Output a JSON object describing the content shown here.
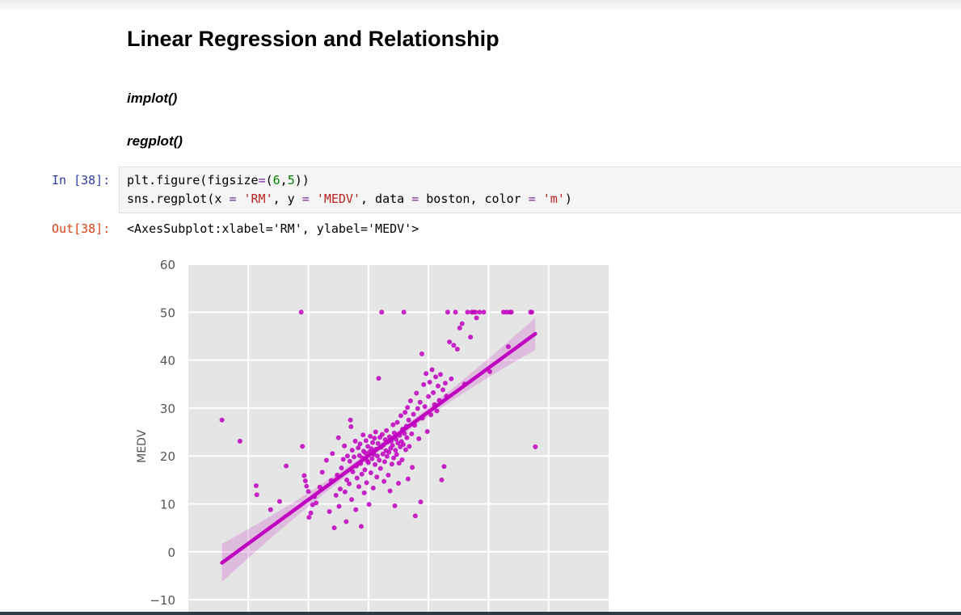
{
  "notebook": {
    "heading": "Linear Regression and Relationship",
    "sub1": "implot()",
    "sub2": "regplot()",
    "in_prompt": "In [38]:",
    "out_prompt": "Out[38]:",
    "code_line1": [
      "plt.figure(figsize",
      "=",
      "(",
      "6",
      ",",
      "5",
      "))"
    ],
    "code_line2": [
      "sns.regplot(x ",
      "=",
      " ",
      "'RM'",
      ", y ",
      "=",
      " ",
      "'MEDV'",
      ", data ",
      "=",
      " boston, color ",
      "=",
      " ",
      "'m'",
      ")"
    ],
    "output_text": "<AxesSubplot:xlabel='RM', ylabel='MEDV'>"
  },
  "chart_data": {
    "type": "scatter",
    "xlabel": "",
    "ylabel": "MEDV",
    "xlim": [
      3,
      10
    ],
    "ylim": [
      -10,
      60
    ],
    "yticks": [
      "60",
      "50",
      "40",
      "30",
      "20",
      "10",
      "0",
      "−10"
    ],
    "grid": true,
    "color": "#bf00bf",
    "regression": {
      "x": [
        3.56,
        8.78
      ],
      "y": [
        -2.3,
        45.5
      ]
    },
    "series": [
      {
        "values": [
          [
            3.56,
            27.5
          ],
          [
            3.86,
            23.1
          ],
          [
            4.13,
            13.8
          ],
          [
            4.14,
            11.9
          ],
          [
            4.37,
            8.8
          ],
          [
            4.52,
            10.5
          ],
          [
            4.63,
            17.9
          ],
          [
            4.88,
            50
          ],
          [
            4.9,
            22
          ],
          [
            4.93,
            15.9
          ],
          [
            4.95,
            14.8
          ],
          [
            4.97,
            13.7
          ],
          [
            5.0,
            12.6
          ],
          [
            5.01,
            7.2
          ],
          [
            5.04,
            8.1
          ],
          [
            5.07,
            9.8
          ],
          [
            5.1,
            11.5
          ],
          [
            5.13,
            10.2
          ],
          [
            5.19,
            13.5
          ],
          [
            5.23,
            16.6
          ],
          [
            5.3,
            19.1
          ],
          [
            5.35,
            8.4
          ],
          [
            5.38,
            14.9
          ],
          [
            5.4,
            20.5
          ],
          [
            5.43,
            5.0
          ],
          [
            5.46,
            11.8
          ],
          [
            5.48,
            16.0
          ],
          [
            5.5,
            23.8
          ],
          [
            5.51,
            9.5
          ],
          [
            5.53,
            13.1
          ],
          [
            5.55,
            17.5
          ],
          [
            5.58,
            19.3
          ],
          [
            5.6,
            22.1
          ],
          [
            5.61,
            12.5
          ],
          [
            5.63,
            6.3
          ],
          [
            5.64,
            15.0
          ],
          [
            5.65,
            20.0
          ],
          [
            5.68,
            14.2
          ],
          [
            5.69,
            18.9
          ],
          [
            5.7,
            27.5
          ],
          [
            5.71,
            26.1
          ],
          [
            5.72,
            10.9
          ],
          [
            5.73,
            21.2
          ],
          [
            5.74,
            16.7
          ],
          [
            5.76,
            19.8
          ],
          [
            5.78,
            23.1
          ],
          [
            5.79,
            8.8
          ],
          [
            5.8,
            17.9
          ],
          [
            5.81,
            15.4
          ],
          [
            5.83,
            21.7
          ],
          [
            5.84,
            13.6
          ],
          [
            5.85,
            20.1
          ],
          [
            5.86,
            22.5
          ],
          [
            5.87,
            18.4
          ],
          [
            5.88,
            5.3
          ],
          [
            5.89,
            16.2
          ],
          [
            5.9,
            19.6
          ],
          [
            5.91,
            24.4
          ],
          [
            5.92,
            21.0
          ],
          [
            5.93,
            12.3
          ],
          [
            5.94,
            17.1
          ],
          [
            5.95,
            20.6
          ],
          [
            5.96,
            23.2
          ],
          [
            5.97,
            14.4
          ],
          [
            5.98,
            19.0
          ],
          [
            5.99,
            22.0
          ],
          [
            6.0,
            18.6
          ],
          [
            6.01,
            9.9
          ],
          [
            6.02,
            20.9
          ],
          [
            6.03,
            24.1
          ],
          [
            6.04,
            16.5
          ],
          [
            6.05,
            21.5
          ],
          [
            6.06,
            19.4
          ],
          [
            6.07,
            22.8
          ],
          [
            6.08,
            13.3
          ],
          [
            6.09,
            20.3
          ],
          [
            6.1,
            23.7
          ],
          [
            6.11,
            18.2
          ],
          [
            6.12,
            25.0
          ],
          [
            6.13,
            21.4
          ],
          [
            6.14,
            15.6
          ],
          [
            6.15,
            20.0
          ],
          [
            6.16,
            22.6
          ],
          [
            6.17,
            36.2
          ],
          [
            6.18,
            19.1
          ],
          [
            6.19,
            23.9
          ],
          [
            6.2,
            17.4
          ],
          [
            6.21,
            21.8
          ],
          [
            6.22,
            50
          ],
          [
            6.23,
            24.5
          ],
          [
            6.24,
            20.4
          ],
          [
            6.25,
            22.3
          ],
          [
            6.26,
            14.7
          ],
          [
            6.27,
            18.8
          ],
          [
            6.28,
            23.4
          ],
          [
            6.29,
            21.1
          ],
          [
            6.3,
            25.3
          ],
          [
            6.31,
            19.9
          ],
          [
            6.32,
            22.9
          ],
          [
            6.33,
            16.0
          ],
          [
            6.34,
            20.8
          ],
          [
            6.35,
            24.0
          ],
          [
            6.36,
            12.7
          ],
          [
            6.37,
            21.6
          ],
          [
            6.38,
            23.1
          ],
          [
            6.39,
            18.3
          ],
          [
            6.4,
            22.2
          ],
          [
            6.41,
            26.5
          ],
          [
            6.42,
            19.6
          ],
          [
            6.43,
            24.8
          ],
          [
            6.44,
            9.6
          ],
          [
            6.45,
            21.2
          ],
          [
            6.46,
            23.5
          ],
          [
            6.47,
            20.3
          ],
          [
            6.48,
            27.0
          ],
          [
            6.49,
            22.7
          ],
          [
            6.5,
            14.3
          ],
          [
            6.51,
            18.5
          ],
          [
            6.52,
            24.3
          ],
          [
            6.53,
            21.9
          ],
          [
            6.54,
            28.4
          ],
          [
            6.55,
            23.0
          ],
          [
            6.56,
            19.2
          ],
          [
            6.57,
            25.6
          ],
          [
            6.58,
            22.4
          ],
          [
            6.59,
            50
          ],
          [
            6.6,
            24.7
          ],
          [
            6.61,
            29.1
          ],
          [
            6.62,
            21.3
          ],
          [
            6.63,
            26.2
          ],
          [
            6.64,
            23.8
          ],
          [
            6.65,
            30.1
          ],
          [
            6.66,
            15.2
          ],
          [
            6.67,
            27.5
          ],
          [
            6.68,
            22.0
          ],
          [
            6.7,
            31.5
          ],
          [
            6.72,
            24.6
          ],
          [
            6.73,
            17.6
          ],
          [
            6.75,
            28.7
          ],
          [
            6.77,
            26.4
          ],
          [
            6.78,
            7.5
          ],
          [
            6.8,
            33.1
          ],
          [
            6.82,
            29.9
          ],
          [
            6.84,
            23.6
          ],
          [
            6.86,
            31.2
          ],
          [
            6.87,
            10.4
          ],
          [
            6.89,
            41.3
          ],
          [
            6.9,
            27.9
          ],
          [
            6.92,
            34.9
          ],
          [
            6.94,
            30.3
          ],
          [
            6.96,
            37.2
          ],
          [
            6.98,
            25.1
          ],
          [
            7.0,
            32.4
          ],
          [
            7.02,
            35.4
          ],
          [
            7.04,
            28.6
          ],
          [
            7.06,
            38.0
          ],
          [
            7.08,
            33.2
          ],
          [
            7.1,
            30.7
          ],
          [
            7.12,
            36.5
          ],
          [
            7.14,
            29.4
          ],
          [
            7.16,
            34.6
          ],
          [
            7.18,
            31.6
          ],
          [
            7.2,
            37.0
          ],
          [
            7.22,
            15.0
          ],
          [
            7.24,
            33.8
          ],
          [
            7.26,
            17.8
          ],
          [
            7.28,
            35.2
          ],
          [
            7.3,
            32.5
          ],
          [
            7.32,
            50
          ],
          [
            7.35,
            43.8
          ],
          [
            7.38,
            36.1
          ],
          [
            7.42,
            43.1
          ],
          [
            7.45,
            50
          ],
          [
            7.48,
            42.3
          ],
          [
            7.52,
            46.7
          ],
          [
            7.56,
            47.6
          ],
          [
            7.6,
            35.0
          ],
          [
            7.65,
            50
          ],
          [
            7.7,
            44.8
          ],
          [
            7.72,
            50
          ],
          [
            7.75,
            50
          ],
          [
            7.78,
            50
          ],
          [
            7.8,
            48.8
          ],
          [
            7.85,
            50
          ],
          [
            7.92,
            50
          ],
          [
            8.02,
            37.6
          ],
          [
            8.25,
            50
          ],
          [
            8.3,
            50
          ],
          [
            8.33,
            42.8
          ],
          [
            8.35,
            50
          ],
          [
            8.38,
            50
          ],
          [
            8.7,
            50
          ],
          [
            8.72,
            50
          ],
          [
            8.78,
            21.9
          ]
        ]
      }
    ]
  }
}
